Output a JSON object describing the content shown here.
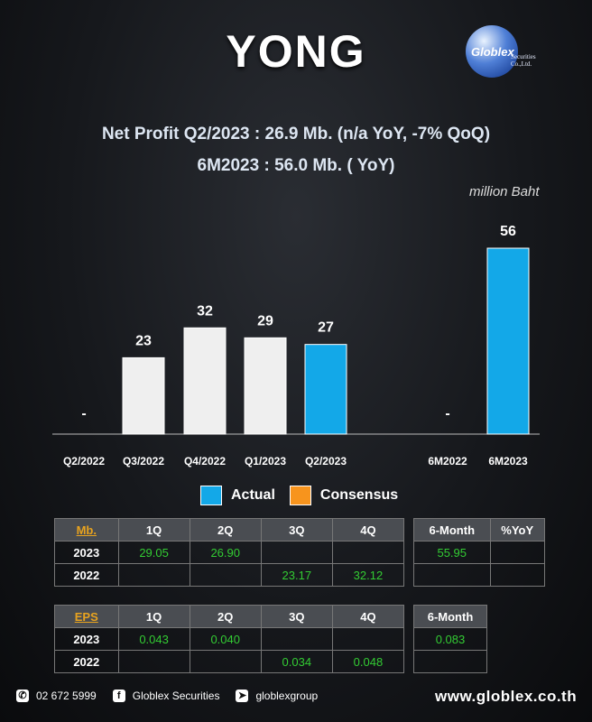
{
  "header": {
    "ticker": "YONG",
    "logo_name": "Globlex",
    "logo_sub": "Securities Co.,Ltd."
  },
  "headline": {
    "line1": "Net Profit  Q2/2023 : 26.9 Mb. (n/a  YoY, -7% QoQ)",
    "line2": "6M2023 : 56.0 Mb. ( YoY)"
  },
  "chart_data": {
    "type": "bar",
    "unit_label": "million Baht",
    "categories": [
      "Q2/2022",
      "Q3/2022",
      "Q4/2022",
      "Q1/2023",
      "Q2/2023",
      "",
      "6M2022",
      "6M2023"
    ],
    "values": [
      null,
      23,
      32,
      29,
      27,
      null,
      null,
      56
    ],
    "labels": [
      "-",
      "23",
      "32",
      "29",
      "27",
      "",
      "-",
      "56"
    ],
    "bar_kind": [
      "actual",
      "past",
      "past",
      "past",
      "actual",
      "none",
      "actual",
      "actual"
    ],
    "ylim": [
      0,
      60
    ],
    "legend": [
      {
        "name": "Actual",
        "color": "#13a8e8"
      },
      {
        "name": "Consensus",
        "color": "#f7941d"
      }
    ],
    "colors": {
      "past": "#efefef",
      "actual": "#13a8e8"
    }
  },
  "np_table": {
    "corner": "Mb.",
    "cols": [
      "1Q",
      "2Q",
      "3Q",
      "4Q"
    ],
    "rows": [
      {
        "year": "2023",
        "vals": [
          "29.05",
          "26.90",
          "",
          ""
        ]
      },
      {
        "year": "2022",
        "vals": [
          "",
          "",
          "23.17",
          "32.12"
        ]
      }
    ],
    "side_cols": [
      "6-Month",
      "%YoY"
    ],
    "side_rows": [
      [
        "55.95",
        ""
      ],
      [
        "",
        ""
      ]
    ]
  },
  "eps_table": {
    "corner": "EPS",
    "cols": [
      "1Q",
      "2Q",
      "3Q",
      "4Q"
    ],
    "rows": [
      {
        "year": "2023",
        "vals": [
          "0.043",
          "0.040",
          "",
          ""
        ]
      },
      {
        "year": "2022",
        "vals": [
          "",
          "",
          "0.034",
          "0.048"
        ]
      }
    ],
    "side_cols": [
      "6-Month"
    ],
    "side_rows": [
      [
        "0.083"
      ],
      [
        ""
      ]
    ]
  },
  "footer": {
    "phone": "02 672 5999",
    "facebook": "Globlex Securities",
    "telegram": "globlexgroup",
    "website": "www.globlex.co.th"
  }
}
